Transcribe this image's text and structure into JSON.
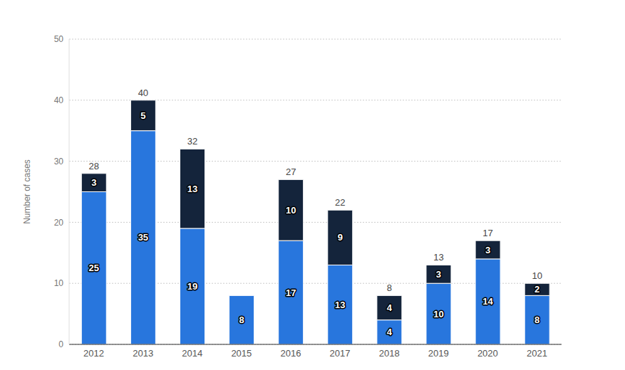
{
  "chart_data": {
    "type": "bar",
    "categories": [
      "2012",
      "2013",
      "2014",
      "2015",
      "2016",
      "2017",
      "2018",
      "2019",
      "2020",
      "2021"
    ],
    "series": [
      {
        "color": "#2876dd",
        "values": [
          25,
          35,
          19,
          8,
          17,
          13,
          4,
          10,
          14,
          8
        ]
      },
      {
        "color": "#14243b",
        "values": [
          3,
          5,
          13,
          0,
          10,
          9,
          4,
          3,
          3,
          2
        ]
      }
    ],
    "totals": [
      28,
      40,
      32,
      8,
      27,
      22,
      8,
      13,
      17,
      10
    ],
    "ylabel": "Number of cases",
    "ylim": [
      0,
      50
    ],
    "yticks": [
      0,
      10,
      20,
      30,
      40,
      50
    ],
    "grid": true,
    "stacked": true,
    "data_labels": true
  }
}
